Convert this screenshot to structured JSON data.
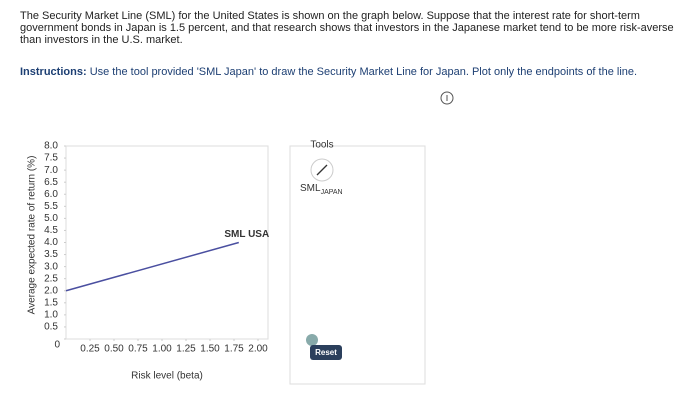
{
  "question": {
    "text": "The Security Market Line (SML) for the United States is shown on the graph below. Suppose that the interest rate for short-term government bonds in Japan is 1.5 percent, and that research shows that investors in the Japanese market tend to be more risk-averse than investors in the U.S. market.",
    "instructions_label": "Instructions:",
    "instructions_text": "Use the tool provided 'SML Japan' to draw the Security Market Line for Japan. Plot only the endpoints of the line."
  },
  "chart_data": {
    "type": "line",
    "y_label": "Average expected rate of return (%)",
    "x_label": "Risk level (beta)",
    "x": [
      0,
      1.8
    ],
    "series": [
      {
        "name": "SML USA",
        "color": "#4a4fa0",
        "values": [
          2.0,
          4.0
        ]
      }
    ],
    "xlim": [
      0,
      2.0
    ],
    "ylim": [
      0,
      8.0
    ],
    "xticks": [
      0.25,
      {
        "value": 0.5,
        "label": "0.50"
      },
      0.75,
      {
        "value": 1,
        "label": "1.00"
      },
      1.25,
      {
        "value": 1.5,
        "label": "1.50"
      },
      1.75,
      {
        "value": 2,
        "label": "2.00"
      }
    ],
    "yticks": [
      0,
      0.5,
      {
        "value": 1,
        "label": "1.0"
      },
      1.5,
      {
        "value": 2,
        "label": "2.0"
      },
      2.5,
      {
        "value": 3,
        "label": "3.0"
      },
      3.5,
      {
        "value": 4,
        "label": "4.0"
      },
      4.5,
      {
        "value": 5,
        "label": "5.0"
      },
      5.5,
      {
        "value": 6,
        "label": "6.0"
      },
      6.5,
      {
        "value": 7,
        "label": "7.0"
      },
      7.5,
      {
        "value": 8,
        "label": "8.0"
      }
    ],
    "grid": false
  },
  "tools": {
    "title": "Tools",
    "tool_main": "SML",
    "tool_sub": "JAPAN",
    "reset": "Reset"
  }
}
